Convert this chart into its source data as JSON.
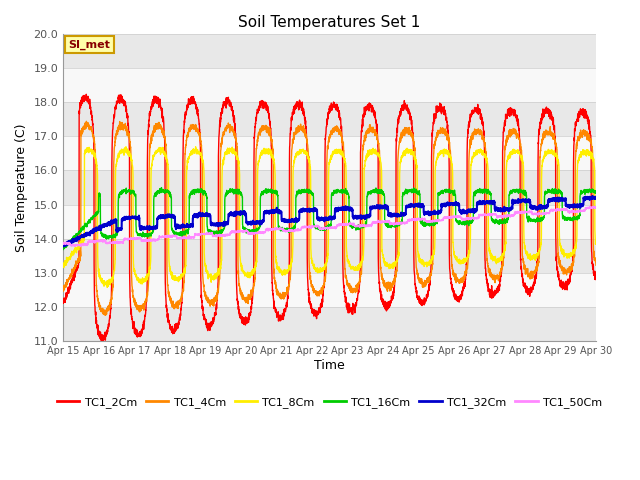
{
  "title": "Soil Temperatures Set 1",
  "xlabel": "Time",
  "ylabel": "Soil Temperature (C)",
  "ylim": [
    11.0,
    20.0
  ],
  "yticks": [
    11.0,
    12.0,
    13.0,
    14.0,
    15.0,
    16.0,
    17.0,
    18.0,
    19.0,
    20.0
  ],
  "xtick_labels": [
    "Apr 15",
    "Apr 16",
    "Apr 17",
    "Apr 18",
    "Apr 19",
    "Apr 20",
    "Apr 21",
    "Apr 22",
    "Apr 23",
    "Apr 24",
    "Apr 25",
    "Apr 26",
    "Apr 27",
    "Apr 28",
    "Apr 29",
    "Apr 30"
  ],
  "fig_bg": "#ffffff",
  "plot_bg": "#e8e8e8",
  "band_color": "#f5f5f5",
  "series_colors": [
    "#ff0000",
    "#ff8800",
    "#ffee00",
    "#00cc00",
    "#0000cc",
    "#ff88ff"
  ],
  "series_labels": [
    "TC1_2Cm",
    "TC1_4Cm",
    "TC1_8Cm",
    "TC1_16Cm",
    "TC1_32Cm",
    "TC1_50Cm"
  ],
  "annotation_text": "SI_met",
  "annotation_bg": "#ffffaa",
  "annotation_border": "#cc9900"
}
